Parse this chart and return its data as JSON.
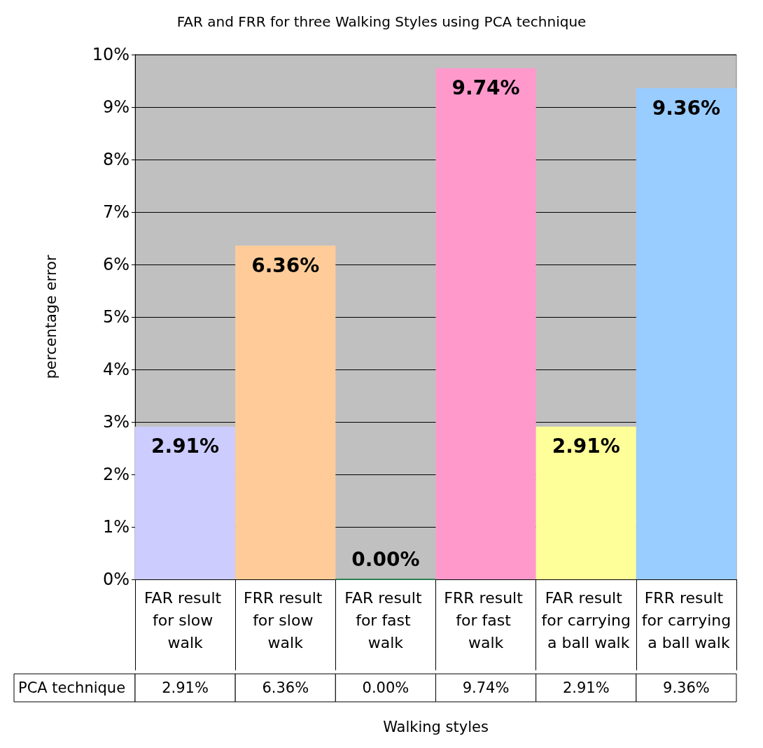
{
  "chart_data": {
    "type": "bar",
    "title": "FAR and FRR for three Walking Styles using PCA technique",
    "xlabel": "Walking styles",
    "ylabel": "percentage error",
    "categories": [
      "FAR result for slow walk",
      "FRR result for slow walk",
      "FAR result for fast walk",
      "FRR result for fast walk",
      "FAR result for carrying a ball walk",
      "FRR result for carrying a ball walk"
    ],
    "series": [
      {
        "name": "PCA technique",
        "colors": [
          "#ccccff",
          "#ffcc99",
          "#2e7d52",
          "#ff99cc",
          "#ffff99",
          "#99ccff"
        ],
        "values": [
          2.91,
          6.36,
          0,
          9.74,
          2.91,
          9.36
        ],
        "value_labels": [
          "2.91%",
          "6.36%",
          "0.00%",
          "9.74%",
          "2.91%",
          "9.36%"
        ]
      }
    ],
    "ylim": [
      0,
      10
    ],
    "yticks": [
      {
        "value": 0,
        "label": "0%"
      },
      {
        "value": 1,
        "label": "1%"
      },
      {
        "value": 2,
        "label": "2%"
      },
      {
        "value": 3,
        "label": "3%"
      },
      {
        "value": 4,
        "label": "4%"
      },
      {
        "value": 5,
        "label": "5%"
      },
      {
        "value": 6,
        "label": "6%"
      },
      {
        "value": 7,
        "label": "7%"
      },
      {
        "value": 8,
        "label": "8%"
      },
      {
        "value": 9,
        "label": "9%"
      },
      {
        "value": 10,
        "label": "10%"
      }
    ],
    "grid": "y",
    "legend": false
  }
}
